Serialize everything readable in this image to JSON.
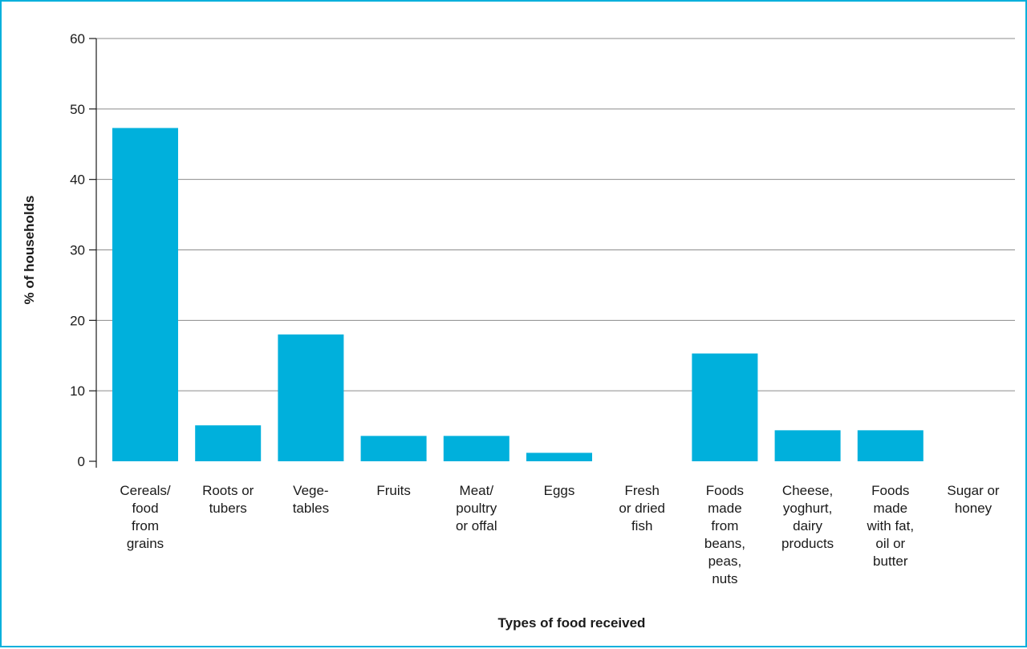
{
  "colors": {
    "bar": "#00b0dc",
    "frame": "#00b0dc",
    "grid": "#8c8c8c",
    "axis": "#1a1a1a",
    "text": "#1a1a1a"
  },
  "chart_data": {
    "type": "bar",
    "categories": [
      [
        "Cereals/",
        "food",
        "from",
        "grains"
      ],
      [
        "Roots or",
        "tubers"
      ],
      [
        "Vege-",
        "tables"
      ],
      [
        "Fruits"
      ],
      [
        "Meat/",
        "poultry",
        "or offal"
      ],
      [
        "Eggs"
      ],
      [
        "Fresh",
        "or dried",
        "fish"
      ],
      [
        "Foods",
        "made",
        "from",
        "beans,",
        "peas,",
        "nuts"
      ],
      [
        "Cheese,",
        "yoghurt,",
        "dairy",
        "products"
      ],
      [
        "Foods",
        "made",
        "with fat,",
        "oil or",
        "butter"
      ],
      [
        "Sugar or",
        "honey"
      ]
    ],
    "values": [
      47.3,
      5.1,
      18.0,
      3.6,
      3.6,
      1.2,
      0,
      15.3,
      4.4,
      4.4,
      0
    ],
    "yticks": [
      "0",
      "10",
      "20",
      "30",
      "40",
      "50",
      "60"
    ],
    "ylim": [
      0,
      60
    ],
    "ylabel": "% of households",
    "xlabel": "Types of food received",
    "grid": true,
    "legend": false
  }
}
